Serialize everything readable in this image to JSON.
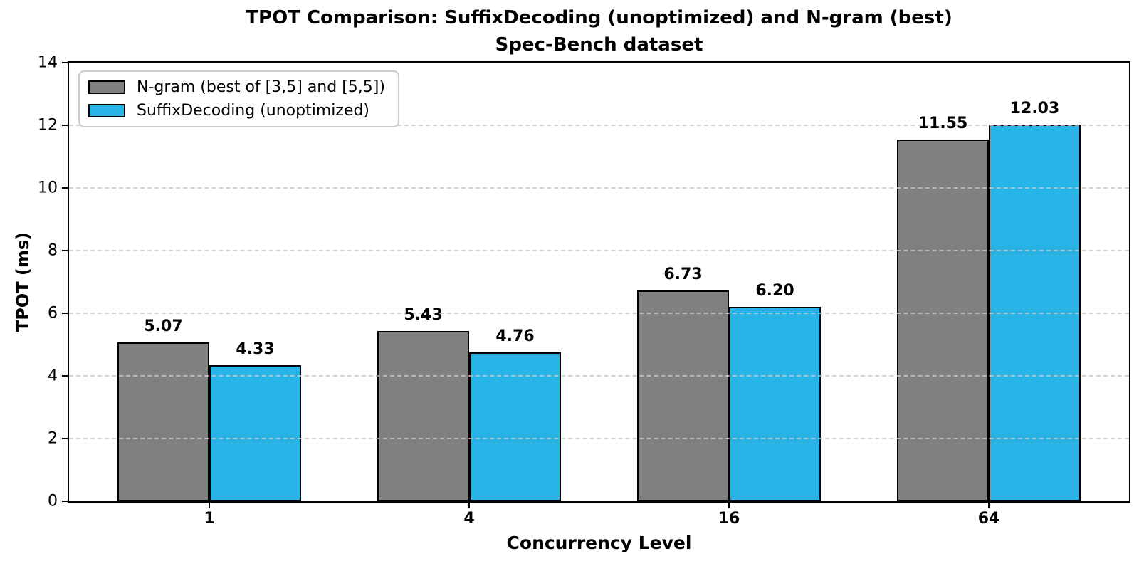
{
  "chart_data": {
    "type": "bar",
    "title": "TPOT Comparison: SuffixDecoding (unoptimized) and N-gram (best)",
    "subtitle": "Spec-Bench dataset",
    "xlabel": "Concurrency Level",
    "ylabel": "TPOT (ms)",
    "categories": [
      "1",
      "4",
      "16",
      "64"
    ],
    "series": [
      {
        "name": "N-gram (best of [3,5] and [5,5])",
        "color": "#808080",
        "values": [
          5.07,
          5.43,
          6.73,
          11.55
        ]
      },
      {
        "name": "SuffixDecoding (unoptimized)",
        "color": "#29B4E8",
        "values": [
          4.33,
          4.76,
          6.2,
          12.03
        ]
      }
    ],
    "value_labels": [
      [
        "5.07",
        "5.43",
        "6.73",
        "11.55"
      ],
      [
        "4.33",
        "4.76",
        "6.20",
        "12.03"
      ]
    ],
    "ylim": [
      0,
      14
    ],
    "yticks": [
      0,
      2,
      4,
      6,
      8,
      10,
      12,
      14
    ],
    "grid": "horizontal-dashed",
    "legend_position": "upper-left",
    "bar_edge_color": "#000000",
    "grid_color": "#c8c8c8"
  }
}
